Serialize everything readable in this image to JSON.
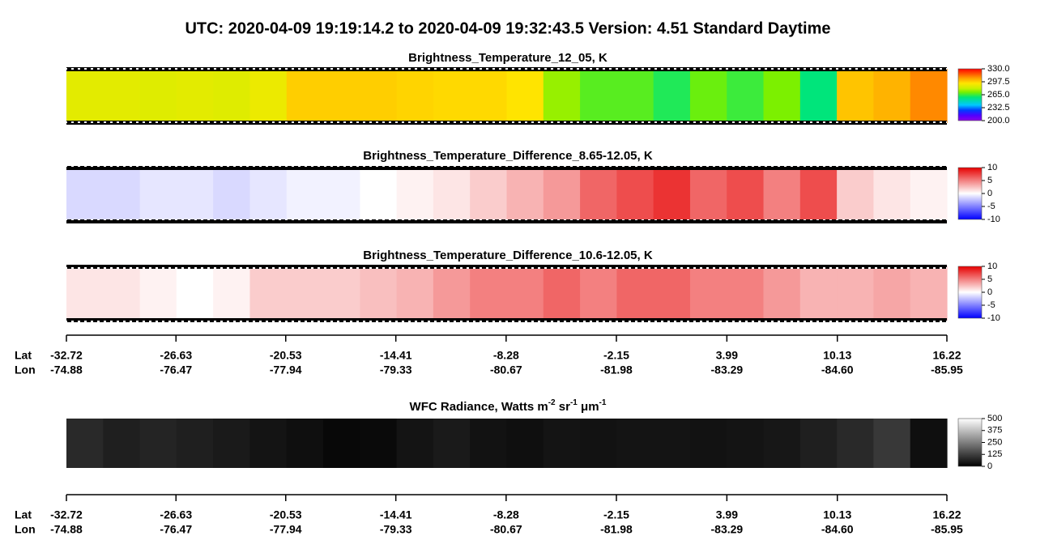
{
  "title": "UTC:  2020-04-09   19:19:14.2  to  2020-04-09   19:32:43.5    Version: 4.51  Standard Daytime",
  "chart_data": [
    {
      "type": "heatmap",
      "title": "Brightness_Temperature_12_05, K",
      "colormap": "rainbow",
      "values": [
        287,
        287,
        286,
        287,
        286,
        289,
        298,
        298,
        298,
        297,
        296,
        296,
        294,
        275,
        268,
        268,
        262,
        270,
        265,
        272,
        258,
        300,
        303,
        310
      ],
      "clim": [
        200,
        330
      ],
      "cticks": [
        {
          "value": 330,
          "label": "330.0"
        },
        {
          "value": 297.5,
          "label": "297.5"
        },
        {
          "value": 265,
          "label": "265.0"
        },
        {
          "value": 232.5,
          "label": "232.5"
        },
        {
          "value": 200,
          "label": "200.0"
        }
      ]
    },
    {
      "type": "heatmap",
      "title": "Brightness_Temperature_Difference_8.65-12.05, K",
      "colormap": "bwr",
      "values": [
        -1.5,
        -1.5,
        -1,
        -1,
        -1.5,
        -1,
        -0.5,
        -0.5,
        0,
        0.5,
        1,
        2,
        3,
        4,
        6,
        7,
        8,
        6,
        7,
        5,
        7,
        2,
        1,
        0.5
      ],
      "clim": [
        -10,
        10
      ],
      "cticks": [
        10,
        5,
        0,
        -5,
        -10
      ]
    },
    {
      "type": "heatmap",
      "title": "Brightness_Temperature_Difference_10.6-12.05, K",
      "colormap": "bwr",
      "values": [
        1,
        1,
        0.5,
        0,
        0.5,
        2,
        2,
        2,
        2.5,
        3,
        4,
        5,
        5,
        6,
        5,
        6,
        6,
        5,
        5,
        4,
        3,
        3,
        3.5,
        3
      ],
      "clim": [
        -10,
        10
      ],
      "cticks": [
        10,
        5,
        0,
        -5,
        -10
      ]
    },
    {
      "type": "heatmap",
      "title": [
        "WFC Radiance, Watts m",
        "-2",
        " sr",
        "-1",
        " μm",
        "-1"
      ],
      "colormap": "gray",
      "values": [
        80,
        60,
        70,
        60,
        50,
        40,
        30,
        15,
        20,
        40,
        50,
        35,
        30,
        40,
        35,
        40,
        40,
        35,
        40,
        45,
        60,
        80,
        110,
        30
      ],
      "clim": [
        0,
        500
      ],
      "cticks": [
        500,
        375,
        250,
        125,
        0
      ]
    }
  ],
  "axes": [
    {
      "lat_label": "Lat",
      "lon_label": "Lon",
      "xlim": [
        -32.72,
        16.22
      ],
      "lat": [
        -32.72,
        -26.63,
        -20.53,
        -14.41,
        -8.28,
        -2.15,
        3.99,
        10.13,
        16.22
      ],
      "lon": [
        -74.88,
        -76.47,
        -77.94,
        -79.33,
        -80.67,
        -81.98,
        -83.29,
        {
          "value": -84.6,
          "label": "-84.60"
        },
        -85.95
      ]
    },
    {
      "lat_label": "Lat",
      "lon_label": "Lon",
      "xlim": [
        -32.72,
        16.22
      ],
      "lat": [
        -32.72,
        -26.63,
        -20.53,
        -14.41,
        -8.28,
        -2.15,
        3.99,
        10.13,
        16.22
      ],
      "lon": [
        -74.88,
        -76.47,
        -77.94,
        -79.33,
        -80.67,
        -81.98,
        -83.29,
        {
          "value": -84.6,
          "label": "-84.60"
        },
        -85.95
      ]
    }
  ]
}
